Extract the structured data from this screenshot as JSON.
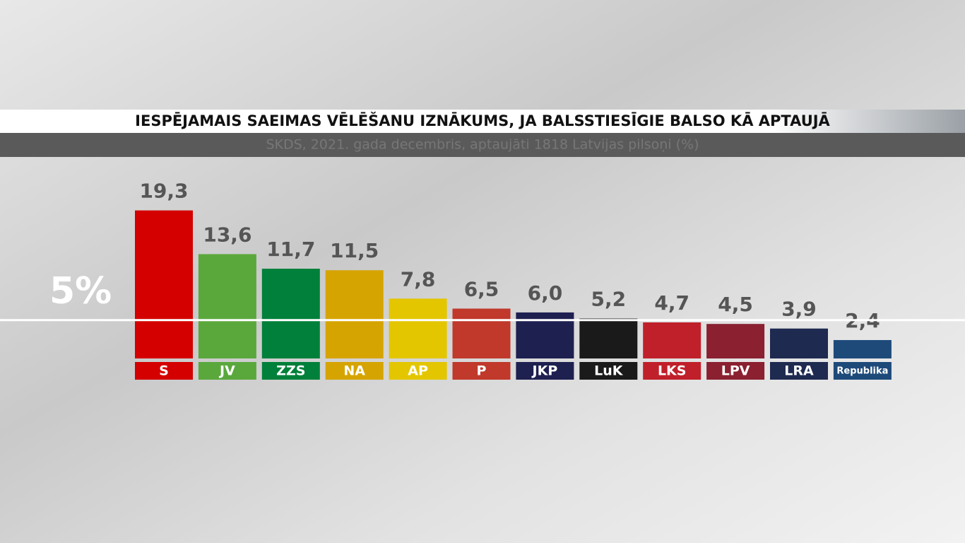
{
  "chart_data": {
    "type": "bar",
    "title": "IESPĒJAMAIS SAEIMAS VĒLĒŠANU IZNĀKUMS, JA BALSSTIESĪGIE BALSO KĀ APTAUJĀ",
    "subtitle": "SKDS, 2021. gada decembris, aptaujāti 1818 Latvijas pilsoņi (%)",
    "categories": [
      "S",
      "JV",
      "ZZS",
      "NA",
      "AP",
      "P",
      "JKP",
      "LuK",
      "LKS",
      "LPV",
      "LRA",
      "Republika"
    ],
    "values": [
      19.3,
      13.6,
      11.7,
      11.5,
      7.8,
      6.5,
      6.0,
      5.2,
      4.7,
      4.5,
      3.9,
      2.4
    ],
    "value_labels": [
      "19,3",
      "13,6",
      "11,7",
      "11,5",
      "7,8",
      "6,5",
      "6,0",
      "5,2",
      "4,7",
      "4,5",
      "3,9",
      "2,4"
    ],
    "colors": [
      "#d40000",
      "#5aa83c",
      "#00803a",
      "#d6a400",
      "#e3c600",
      "#c0392b",
      "#1e2050",
      "#1a1a1a",
      "#c0202a",
      "#8a2030",
      "#1e2a50",
      "#1e4a7a"
    ],
    "ylim": [
      0,
      20
    ],
    "threshold": {
      "value": 5,
      "label": "5%"
    }
  }
}
